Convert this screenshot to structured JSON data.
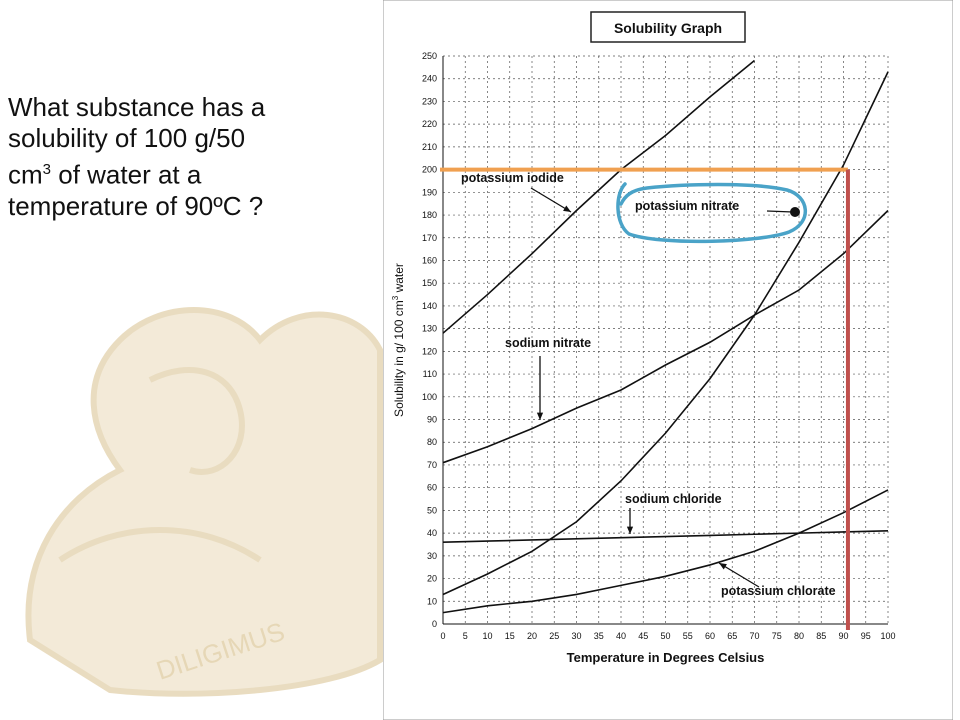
{
  "question": {
    "line1": "What substance has a",
    "line2": "solubility of  100 g/50",
    "line3_base": "cm",
    "line3_sup": "3",
    "line3_rest": " of water at a",
    "line4": "temperature of 90ºC ?"
  },
  "crest_text": "DILIGIMUS",
  "chart_data": {
    "type": "line",
    "title": "Solubility Graph",
    "xlabel": "Temperature in Degrees Celsius",
    "ylabel_parts": {
      "before": "Solubility in g/ 100 cm",
      "sup": "3",
      "after": " water"
    },
    "xlim": [
      0,
      100
    ],
    "ylim": [
      0,
      250
    ],
    "xticks": [
      0,
      5,
      10,
      15,
      20,
      25,
      30,
      35,
      40,
      45,
      50,
      55,
      60,
      65,
      70,
      75,
      80,
      85,
      90,
      95,
      100
    ],
    "yticks": [
      0,
      10,
      20,
      30,
      40,
      50,
      60,
      70,
      80,
      90,
      100,
      110,
      120,
      130,
      140,
      150,
      160,
      170,
      180,
      190,
      200,
      210,
      220,
      230,
      240,
      250
    ],
    "grid": true,
    "series": [
      {
        "name": "potassium iodide",
        "x": [
          0,
          10,
          20,
          30,
          40,
          50,
          60,
          70
        ],
        "y": [
          128,
          145,
          163,
          182,
          200,
          215,
          232,
          248
        ]
      },
      {
        "name": "potassium nitrate",
        "x": [
          0,
          10,
          20,
          30,
          40,
          50,
          60,
          70,
          80,
          90,
          100
        ],
        "y": [
          13,
          22,
          32,
          45,
          63,
          84,
          108,
          136,
          168,
          202,
          243
        ]
      },
      {
        "name": "sodium nitrate",
        "x": [
          0,
          10,
          20,
          30,
          40,
          50,
          60,
          70,
          80,
          90,
          100
        ],
        "y": [
          71,
          78,
          86,
          95,
          103,
          114,
          124,
          136,
          147,
          163,
          182
        ]
      },
      {
        "name": "sodium chloride",
        "x": [
          0,
          10,
          20,
          30,
          40,
          50,
          60,
          70,
          80,
          90,
          100
        ],
        "y": [
          36,
          36.5,
          37,
          37.5,
          38,
          38.5,
          39,
          39.5,
          40,
          40.5,
          41
        ]
      },
      {
        "name": "potassium chlorate",
        "x": [
          0,
          10,
          20,
          30,
          40,
          50,
          60,
          70,
          80,
          90,
          100
        ],
        "y": [
          5,
          8,
          10,
          13,
          17,
          21,
          26,
          32,
          40,
          49,
          59
        ]
      }
    ],
    "annotations": {
      "highlight_y": 200,
      "highlight_x": 91,
      "highlight_y_color": "#f0a050",
      "highlight_x_color": "#c0504d",
      "circle_color": "#4aa3c8"
    }
  }
}
